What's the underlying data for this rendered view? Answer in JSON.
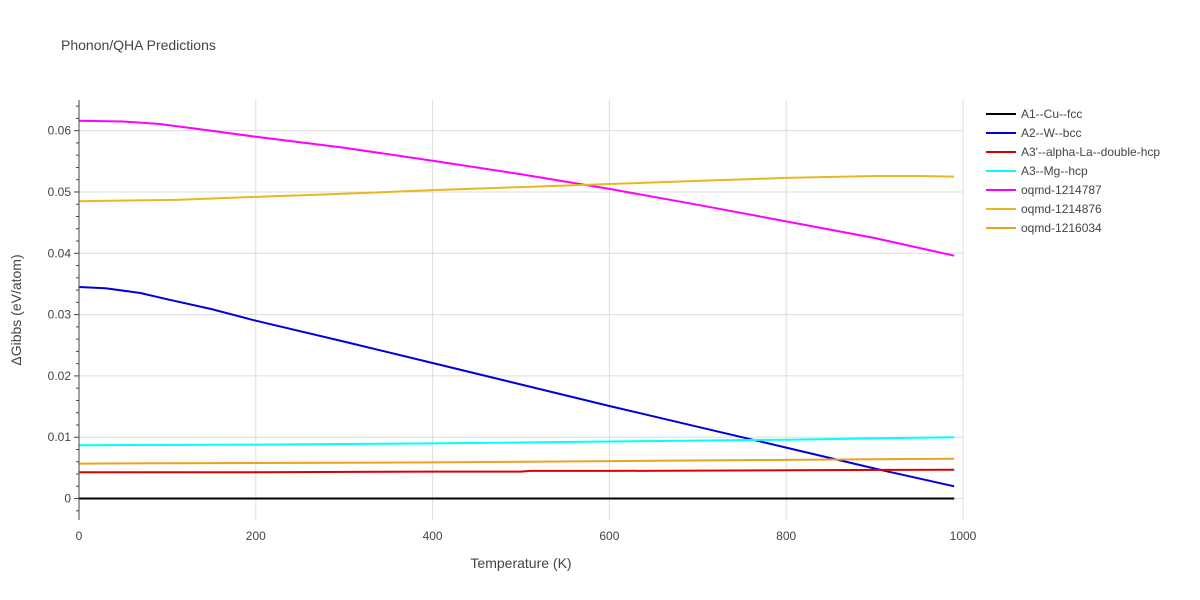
{
  "chart_data": {
    "type": "line",
    "title": "Phonon/QHA Predictions",
    "xlabel": "Temperature (K)",
    "ylabel": "ΔGibbs (eV/atom)",
    "xlim": [
      0,
      1000
    ],
    "ylim": [
      -0.0035,
      0.065
    ],
    "x_ticks": [
      0,
      200,
      400,
      600,
      800,
      1000
    ],
    "y_ticks": [
      0,
      0.01,
      0.02,
      0.03,
      0.04,
      0.05,
      0.06
    ],
    "x_tick_labels": [
      "0",
      "200",
      "400",
      "600",
      "800",
      "1000"
    ],
    "y_tick_labels": [
      "0",
      "0.01",
      "0.02",
      "0.03",
      "0.04",
      "0.05",
      "0.06"
    ],
    "grid": true,
    "legend_position": "right",
    "series": [
      {
        "name": "A1--Cu--fcc",
        "color": "#000000",
        "x": [
          0,
          100,
          200,
          300,
          400,
          500,
          600,
          700,
          800,
          900,
          990
        ],
        "y": [
          0,
          0,
          0,
          0,
          0,
          0,
          0,
          0,
          0,
          0,
          0
        ]
      },
      {
        "name": "A2--W--bcc",
        "color": "#0000dd",
        "x": [
          0,
          30,
          70,
          100,
          150,
          200,
          300,
          400,
          500,
          600,
          700,
          800,
          900,
          990
        ],
        "y": [
          0.0345,
          0.0343,
          0.0335,
          0.0325,
          0.0309,
          0.029,
          0.0256,
          0.0221,
          0.0186,
          0.0151,
          0.0117,
          0.0083,
          0.0049,
          0.002
        ]
      },
      {
        "name": "A3'--alpha-La--double-hcp",
        "color": "#dd0000",
        "x": [
          0,
          200,
          400,
          500,
          510,
          600,
          800,
          990
        ],
        "y": [
          0.0043,
          0.0043,
          0.0044,
          0.0044,
          0.0045,
          0.0045,
          0.0046,
          0.0047
        ]
      },
      {
        "name": "A3--Mg--hcp",
        "color": "#00ffff",
        "x": [
          0,
          200,
          400,
          600,
          800,
          990
        ],
        "y": [
          0.0087,
          0.0088,
          0.009,
          0.0093,
          0.0096,
          0.01
        ]
      },
      {
        "name": "oqmd-1214787",
        "color": "#ff00ff",
        "x": [
          0,
          50,
          90,
          150,
          200,
          300,
          400,
          500,
          600,
          700,
          800,
          900,
          990
        ],
        "y": [
          0.0616,
          0.0615,
          0.0611,
          0.06,
          0.059,
          0.0572,
          0.0551,
          0.0529,
          0.0505,
          0.0479,
          0.0452,
          0.0425,
          0.0396
        ]
      },
      {
        "name": "oqmd-1214876",
        "color": "#e8b820",
        "x": [
          0,
          110,
          200,
          300,
          400,
          500,
          600,
          700,
          800,
          900,
          950,
          990
        ],
        "y": [
          0.0485,
          0.0487,
          0.0492,
          0.0497,
          0.0503,
          0.0508,
          0.0513,
          0.0518,
          0.0523,
          0.0526,
          0.0526,
          0.0525
        ]
      },
      {
        "name": "oqmd-1216034",
        "color": "#f0a020",
        "x": [
          0,
          200,
          400,
          600,
          800,
          990
        ],
        "y": [
          0.0057,
          0.0058,
          0.0059,
          0.0061,
          0.0063,
          0.0065
        ]
      }
    ]
  }
}
